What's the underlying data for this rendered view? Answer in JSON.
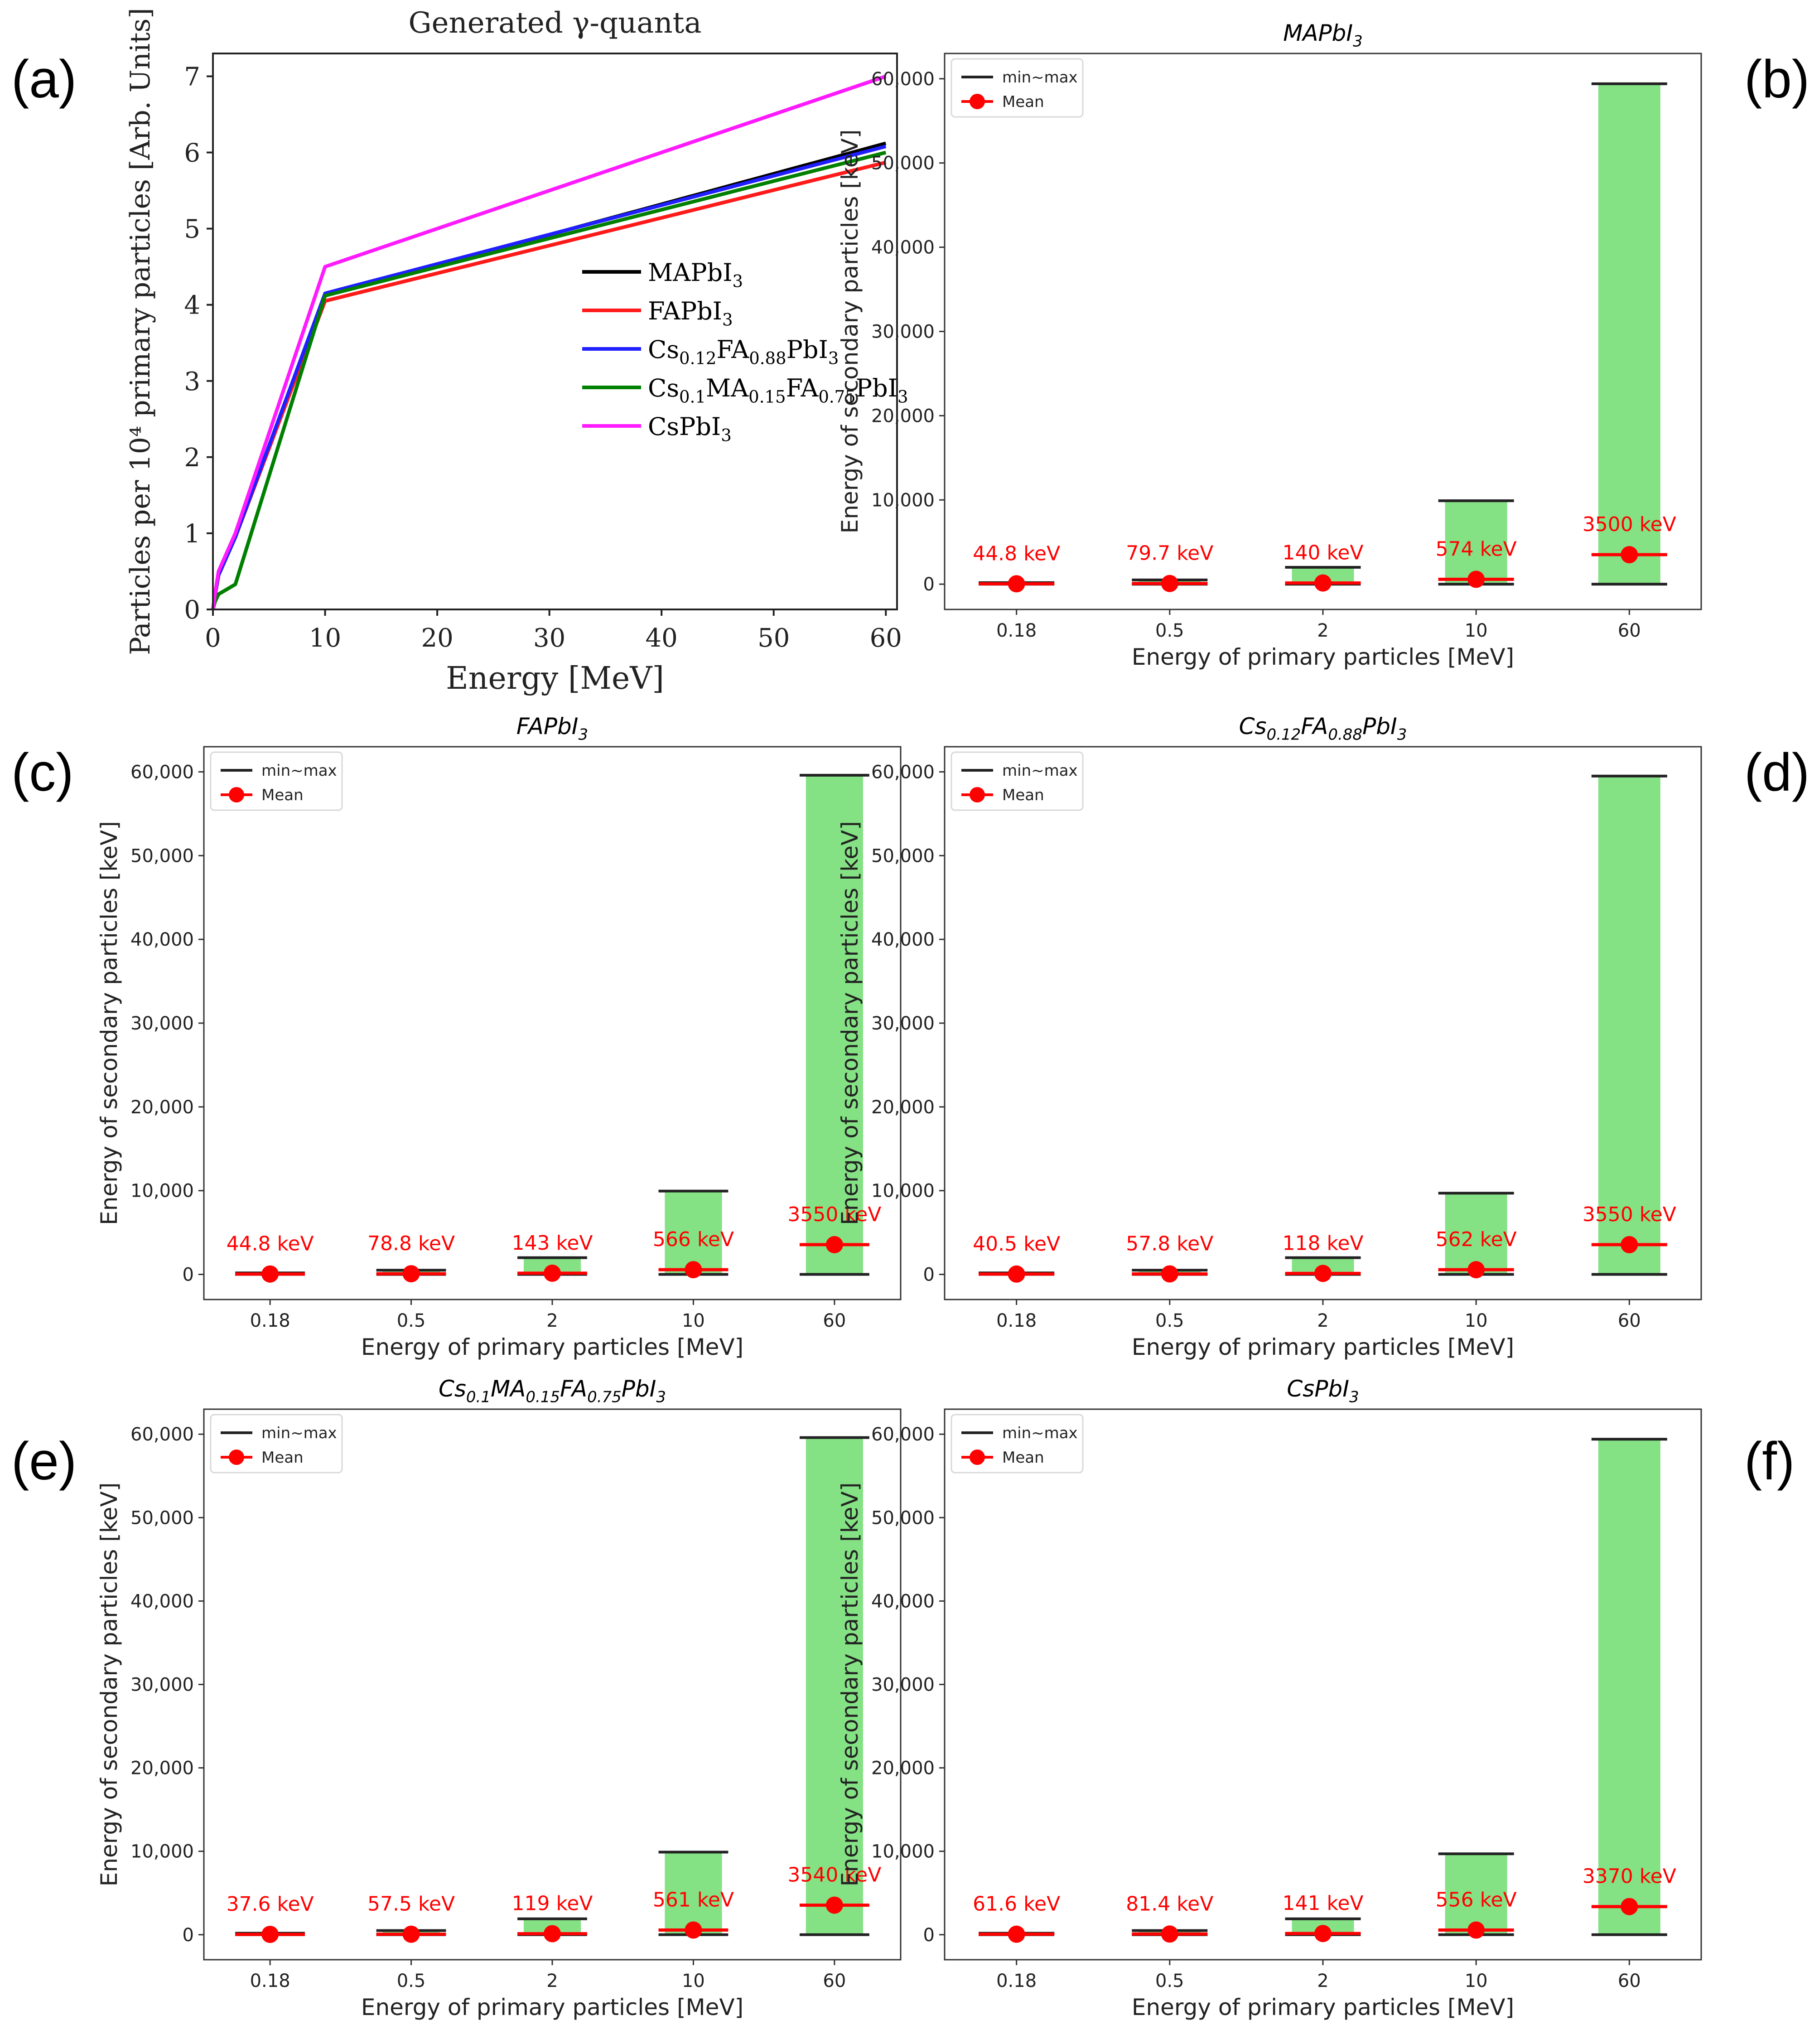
{
  "panel_letters": [
    "(a)",
    "(b)",
    "(c)",
    "(d)",
    "(e)",
    "(f)"
  ],
  "colors": {
    "bar_fill": "#84e184",
    "minmax_line": "#222222",
    "mean_marker": "#ff0000",
    "mean_label": "#ff0000",
    "series": [
      "#000000",
      "#ff1a1a",
      "#1f1fff",
      "#008000",
      "#ff1aff"
    ]
  },
  "chart_data": [
    {
      "panel": "(a)",
      "type": "line",
      "title": "Generated γ-quanta",
      "xlabel": "Energy [MeV]",
      "ylabel": "Particles per 10⁴ primary particles [Arb. Units]",
      "xlim": [
        0,
        61
      ],
      "ylim": [
        0,
        7.3
      ],
      "xticks": [
        0,
        10,
        20,
        30,
        40,
        50,
        60
      ],
      "yticks": [
        0,
        1,
        2,
        3,
        4,
        5,
        6,
        7
      ],
      "grid": false,
      "legend_position": "center-right",
      "x": [
        0,
        0.18,
        0.5,
        2,
        10,
        60
      ],
      "series": [
        {
          "name": "MAPbI3",
          "legend": [
            "MAPbI",
            "3",
            ""
          ],
          "values": [
            0,
            0.18,
            0.45,
            0.95,
            4.12,
            6.12
          ]
        },
        {
          "name": "FAPbI3",
          "legend": [
            "FAPbI",
            "3",
            ""
          ],
          "values": [
            0,
            0.18,
            0.45,
            0.95,
            4.05,
            5.87
          ]
        },
        {
          "name": "Cs0.12FA0.88PbI3",
          "legend": [
            "Cs",
            "0.12",
            "FA",
            "0.88",
            "PbI",
            "3",
            ""
          ],
          "values": [
            0,
            0.18,
            0.45,
            0.95,
            4.15,
            6.08
          ]
        },
        {
          "name": "Cs0.1MA0.15FA0.75PbI3",
          "legend": [
            "Cs",
            "0.1",
            "MA",
            "0.15",
            "FA",
            "0.75",
            "PbI",
            "3",
            ""
          ],
          "values": [
            0,
            0.1,
            0.2,
            0.33,
            4.12,
            6.0
          ]
        },
        {
          "name": "CsPbI3",
          "legend": [
            "CsPbI",
            "3",
            ""
          ],
          "values": [
            0,
            0.2,
            0.5,
            1.0,
            4.5,
            7.0
          ]
        }
      ]
    },
    {
      "panel": "(b)",
      "type": "bar",
      "title": [
        "MAPbI",
        "3",
        ""
      ],
      "xlabel": "Energy of primary particles [MeV]",
      "ylabel": "Energy of secondary particles [keV]",
      "categories": [
        "0.18",
        "0.5",
        "2",
        "10",
        "60"
      ],
      "ylim": [
        -3000,
        63000
      ],
      "yticks": [
        0,
        10000,
        20000,
        30000,
        40000,
        50000,
        60000
      ],
      "ytick_labels": [
        "0",
        "10,000",
        "20,000",
        "30,000",
        "40,000",
        "50,000",
        "60,000"
      ],
      "legend": [
        "min~max",
        "Mean"
      ],
      "legend_position": "top-left",
      "min": [
        0,
        0,
        0,
        0,
        0
      ],
      "max": [
        180,
        500,
        2000,
        9900,
        59400
      ],
      "mean": [
        44.8,
        79.7,
        140,
        574,
        3500
      ],
      "mean_labels": [
        "44.8 keV",
        "79.7 keV",
        "140 keV",
        "574 keV",
        "3500 keV"
      ]
    },
    {
      "panel": "(c)",
      "type": "bar",
      "title": [
        "FAPbI",
        "3",
        ""
      ],
      "xlabel": "Energy of primary particles [MeV]",
      "ylabel": "Energy of secondary particles [keV]",
      "categories": [
        "0.18",
        "0.5",
        "2",
        "10",
        "60"
      ],
      "ylim": [
        -3000,
        63000
      ],
      "yticks": [
        0,
        10000,
        20000,
        30000,
        40000,
        50000,
        60000
      ],
      "ytick_labels": [
        "0",
        "10,000",
        "20,000",
        "30,000",
        "40,000",
        "50,000",
        "60,000"
      ],
      "legend": [
        "min~max",
        "Mean"
      ],
      "legend_position": "top-left",
      "min": [
        0,
        0,
        0,
        0,
        0
      ],
      "max": [
        180,
        500,
        2000,
        9950,
        59600
      ],
      "mean": [
        44.8,
        78.8,
        143,
        566,
        3550
      ],
      "mean_labels": [
        "44.8 keV",
        "78.8 keV",
        "143 keV",
        "566 keV",
        "3550 keV"
      ]
    },
    {
      "panel": "(d)",
      "type": "bar",
      "title": [
        "Cs",
        "0.12",
        "FA",
        "0.88",
        "PbI",
        "3",
        ""
      ],
      "xlabel": "Energy of primary particles [MeV]",
      "ylabel": "Energy of secondary particles [keV]",
      "categories": [
        "0.18",
        "0.5",
        "2",
        "10",
        "60"
      ],
      "ylim": [
        -3000,
        63000
      ],
      "yticks": [
        0,
        10000,
        20000,
        30000,
        40000,
        50000,
        60000
      ],
      "ytick_labels": [
        "0",
        "10,000",
        "20,000",
        "30,000",
        "40,000",
        "50,000",
        "60,000"
      ],
      "legend": [
        "min~max",
        "Mean"
      ],
      "legend_position": "top-left",
      "min": [
        0,
        0,
        0,
        0,
        0
      ],
      "max": [
        180,
        500,
        2000,
        9700,
        59500
      ],
      "mean": [
        40.5,
        57.8,
        118,
        562,
        3550
      ],
      "mean_labels": [
        "40.5 keV",
        "57.8 keV",
        "118 keV",
        "562 keV",
        "3550 keV"
      ]
    },
    {
      "panel": "(e)",
      "type": "bar",
      "title": [
        "Cs",
        "0.1",
        "MA",
        "0.15",
        "FA",
        "0.75",
        "PbI",
        "3",
        ""
      ],
      "xlabel": "Energy of primary particles [MeV]",
      "ylabel": "Energy of secondary particles [keV]",
      "categories": [
        "0.18",
        "0.5",
        "2",
        "10",
        "60"
      ],
      "ylim": [
        -3000,
        63000
      ],
      "yticks": [
        0,
        10000,
        20000,
        30000,
        40000,
        50000,
        60000
      ],
      "ytick_labels": [
        "0",
        "10,000",
        "20,000",
        "30,000",
        "40,000",
        "50,000",
        "60,000"
      ],
      "legend": [
        "min~max",
        "Mean"
      ],
      "legend_position": "top-left",
      "min": [
        0,
        0,
        0,
        0,
        0
      ],
      "max": [
        180,
        500,
        1900,
        9900,
        59600
      ],
      "mean": [
        37.6,
        57.5,
        119,
        561,
        3540
      ],
      "mean_labels": [
        "37.6 keV",
        "57.5 keV",
        "119 keV",
        "561 keV",
        "3540 keV"
      ]
    },
    {
      "panel": "(f)",
      "type": "bar",
      "title": [
        "CsPbI",
        "3",
        ""
      ],
      "xlabel": "Energy of primary particles [MeV]",
      "ylabel": "Energy of secondary particles [keV]",
      "categories": [
        "0.18",
        "0.5",
        "2",
        "10",
        "60"
      ],
      "ylim": [
        -3000,
        63000
      ],
      "yticks": [
        0,
        10000,
        20000,
        30000,
        40000,
        50000,
        60000
      ],
      "ytick_labels": [
        "0",
        "10,000",
        "20,000",
        "30,000",
        "40,000",
        "50,000",
        "60,000"
      ],
      "legend": [
        "min~max",
        "Mean"
      ],
      "legend_position": "top-left",
      "min": [
        0,
        0,
        0,
        0,
        0
      ],
      "max": [
        180,
        500,
        1900,
        9700,
        59400
      ],
      "mean": [
        61.6,
        81.4,
        141,
        556,
        3370
      ],
      "mean_labels": [
        "61.6 keV",
        "81.4 keV",
        "141 keV",
        "556 keV",
        "3370 keV"
      ]
    }
  ]
}
